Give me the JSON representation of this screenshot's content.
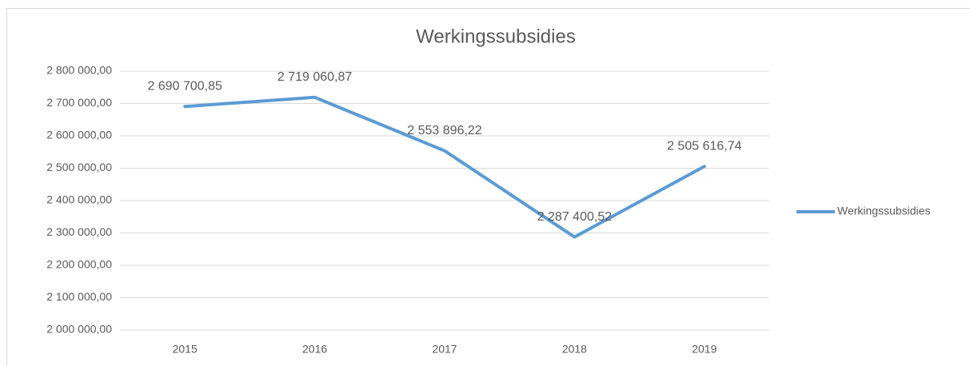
{
  "chart_data": {
    "type": "line",
    "title": "Werkingssubsidies",
    "categories": [
      "2015",
      "2016",
      "2017",
      "2018",
      "2019"
    ],
    "series": [
      {
        "name": "Werkingssubsidies",
        "color": "#5b9bd5",
        "values": [
          2690700.85,
          2719060.87,
          2553896.22,
          2287400.52,
          2505616.74
        ],
        "value_labels": [
          "2 690 700,85",
          "2 719 060,87",
          "2 553 896,22",
          "2 287 400,52",
          "2 505 616,74"
        ]
      }
    ],
    "ylim": [
      2000000,
      2800000
    ],
    "yticks": [
      {
        "value": 2000000,
        "label": "2 000 000,00"
      },
      {
        "value": 2100000,
        "label": "2 100 000,00"
      },
      {
        "value": 2200000,
        "label": "2 200 000,00"
      },
      {
        "value": 2300000,
        "label": "2 300 000,00"
      },
      {
        "value": 2400000,
        "label": "2 400 000,00"
      },
      {
        "value": 2500000,
        "label": "2 500 000,00"
      },
      {
        "value": 2600000,
        "label": "2 600 000,00"
      },
      {
        "value": 2700000,
        "label": "2 700 000,00"
      },
      {
        "value": 2800000,
        "label": "2 800 000,00"
      }
    ],
    "grid": true,
    "legend": "right"
  }
}
